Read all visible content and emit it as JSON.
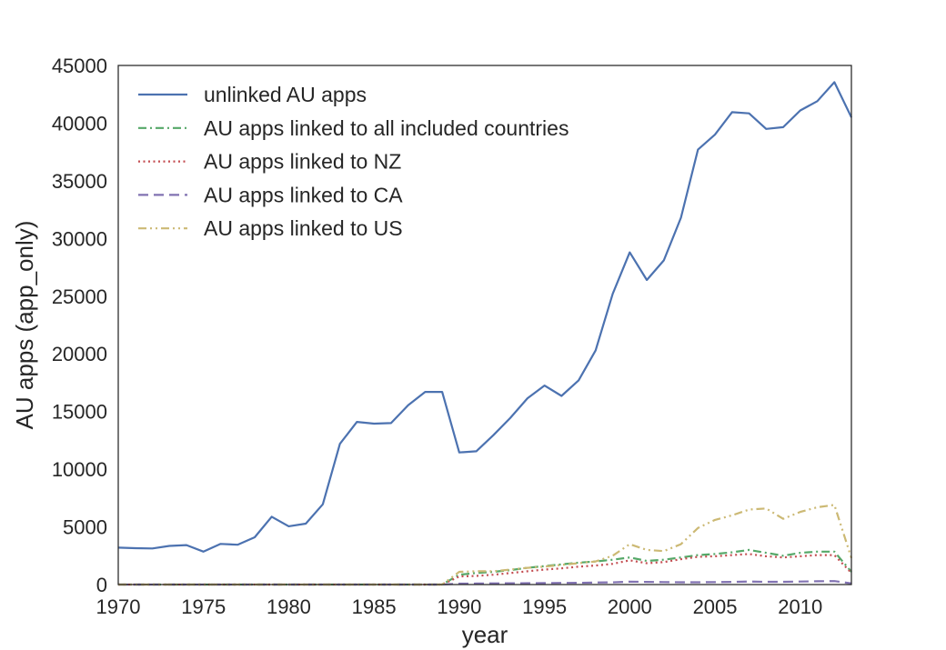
{
  "chart_data": {
    "type": "line",
    "xlabel": "year",
    "ylabel": "AU apps (app_only)",
    "xlim": [
      1970,
      2013
    ],
    "ylim": [
      0,
      45000
    ],
    "x_ticks": [
      1970,
      1975,
      1980,
      1985,
      1990,
      1995,
      2000,
      2005,
      2010
    ],
    "y_ticks": [
      0,
      5000,
      10000,
      15000,
      20000,
      25000,
      30000,
      35000,
      40000,
      45000
    ],
    "grid": false,
    "legend_position": "top-left",
    "x": [
      1970,
      1971,
      1972,
      1973,
      1974,
      1975,
      1976,
      1977,
      1978,
      1979,
      1980,
      1981,
      1982,
      1983,
      1984,
      1985,
      1986,
      1987,
      1988,
      1989,
      1990,
      1991,
      1992,
      1993,
      1994,
      1995,
      1996,
      1997,
      1998,
      1999,
      2000,
      2001,
      2002,
      2003,
      2004,
      2005,
      2006,
      2007,
      2008,
      2009,
      2010,
      2011,
      2012,
      2013
    ],
    "series": [
      {
        "name": "unlinked AU apps",
        "color": "#4c72b0",
        "dash": "solid",
        "values": [
          3200,
          3150,
          3130,
          3350,
          3420,
          2850,
          3520,
          3450,
          4100,
          5880,
          5050,
          5280,
          6960,
          12200,
          14100,
          13950,
          14000,
          15550,
          16700,
          16700,
          11450,
          11550,
          12950,
          14450,
          16150,
          17250,
          16350,
          17700,
          20300,
          25200,
          28800,
          26400,
          28100,
          31800,
          37700,
          39000,
          40950,
          40850,
          39500,
          39650,
          41100,
          41900,
          43550,
          40500
        ]
      },
      {
        "name": "AU apps linked to all included countries",
        "color": "#55a868",
        "dash": "dashdot",
        "values": [
          0,
          0,
          0,
          0,
          0,
          0,
          0,
          0,
          0,
          0,
          0,
          0,
          0,
          0,
          0,
          0,
          0,
          0,
          0,
          0,
          850,
          1000,
          1100,
          1250,
          1450,
          1600,
          1750,
          1900,
          2000,
          2150,
          2350,
          2050,
          2150,
          2350,
          2550,
          2650,
          2800,
          3000,
          2750,
          2500,
          2750,
          2850,
          2850,
          1100
        ]
      },
      {
        "name": "AU apps linked to NZ",
        "color": "#c44e52",
        "dash": "dotted",
        "values": [
          0,
          0,
          0,
          0,
          0,
          0,
          0,
          0,
          0,
          0,
          0,
          0,
          0,
          0,
          0,
          0,
          0,
          0,
          0,
          0,
          700,
          750,
          850,
          1000,
          1150,
          1300,
          1400,
          1550,
          1650,
          1800,
          2100,
          1850,
          1950,
          2200,
          2400,
          2450,
          2550,
          2650,
          2450,
          2350,
          2450,
          2550,
          2550,
          1000
        ]
      },
      {
        "name": "AU apps linked to CA",
        "color": "#8172b2",
        "dash": "dashed",
        "values": [
          0,
          0,
          0,
          0,
          0,
          0,
          0,
          0,
          0,
          0,
          0,
          0,
          0,
          0,
          0,
          0,
          0,
          0,
          0,
          0,
          80,
          90,
          100,
          110,
          120,
          130,
          140,
          150,
          170,
          190,
          250,
          230,
          210,
          200,
          200,
          210,
          230,
          260,
          240,
          240,
          260,
          280,
          300,
          100
        ]
      },
      {
        "name": "AU apps linked to US",
        "color": "#ccb974",
        "dash": "dashdotdot",
        "values": [
          0,
          0,
          0,
          0,
          0,
          0,
          0,
          0,
          0,
          0,
          0,
          0,
          0,
          0,
          0,
          0,
          0,
          0,
          0,
          0,
          1100,
          1150,
          1150,
          1300,
          1450,
          1550,
          1700,
          1850,
          2000,
          2500,
          3500,
          3000,
          2900,
          3500,
          4900,
          5600,
          6000,
          6500,
          6600,
          5700,
          6300,
          6700,
          6900,
          2300
        ]
      }
    ]
  }
}
